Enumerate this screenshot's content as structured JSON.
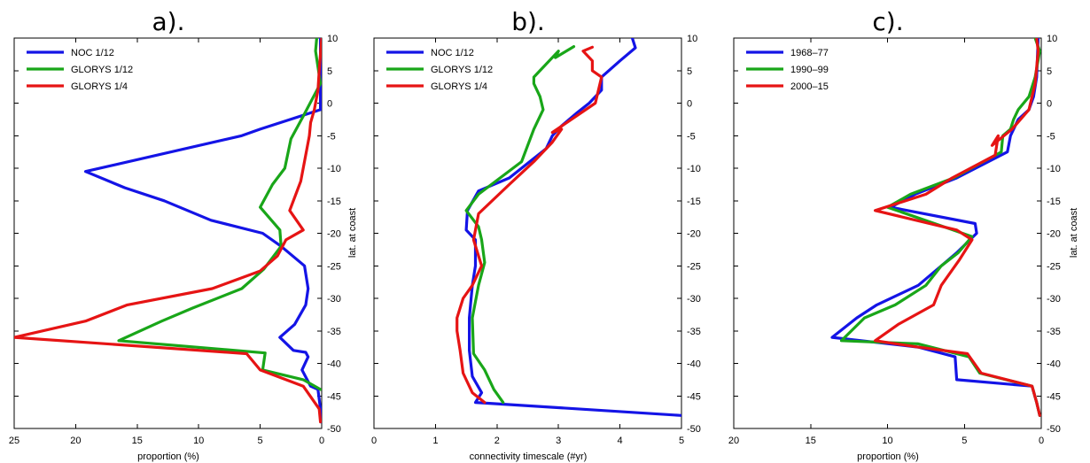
{
  "chart_data": [
    {
      "panel": "a",
      "type": "line",
      "title": "a).",
      "xlabel": "proportion (%)",
      "ylabel": "lat. at coast",
      "xlim": [
        25,
        0
      ],
      "ylim": [
        -50,
        10
      ],
      "x_reversed": true,
      "xticks": [
        25,
        20,
        15,
        10,
        5,
        0
      ],
      "yticks": [
        10,
        5,
        0,
        -5,
        -10,
        -15,
        -20,
        -25,
        -30,
        -35,
        -40,
        -45,
        -50
      ],
      "legend_position": "top-left",
      "series": [
        {
          "name": "NOC 1/12",
          "color": "#1414e6",
          "x": [
            0.05,
            0.1,
            0.3,
            0.9,
            1.6,
            1.1,
            1.3,
            2.3,
            3.4,
            2.2,
            1.3,
            1.1,
            1.4,
            3.3,
            4.8,
            9.0,
            12.8,
            16.0,
            19.2,
            6.5,
            5.0,
            0.1,
            0.1
          ],
          "y": [
            -49,
            -47,
            -44,
            -43.5,
            -41,
            -39,
            -38.3,
            -38,
            -36,
            -34,
            -31,
            -28.5,
            -25,
            -22,
            -20,
            -18,
            -15,
            -13,
            -10.5,
            -5,
            -4,
            -1,
            10
          ]
        },
        {
          "name": "GLORYS 1/12",
          "color": "#19a619",
          "x": [
            0.1,
            0.1,
            1.5,
            4.8,
            4.6,
            4.8,
            16.5,
            13.0,
            10.5,
            6.5,
            4.7,
            3.4,
            2.8,
            2.2,
            1.5,
            0.1,
            0.5,
            0.4
          ],
          "y": [
            -49,
            -44,
            -42.5,
            -41,
            -38.5,
            -38.4,
            -36.5,
            -33.5,
            -31.5,
            -28.5,
            -25.5,
            -23.5,
            -19.5,
            -16,
            -10,
            -1,
            5,
            10
          ],
          "x_full": [
            0.1,
            1.5,
            4.8,
            4.6,
            16.5,
            13.0,
            10.5,
            6.5,
            4.7,
            3.3,
            3.4,
            5.0,
            4.0,
            3.0,
            2.5,
            1.5,
            0.1,
            0.5,
            0.4
          ],
          "y_full": [
            -44,
            -42.5,
            -41,
            -38.4,
            -36.5,
            -33.5,
            -31.5,
            -28.5,
            -25.5,
            -22,
            -19.5,
            -16,
            -12.5,
            -10,
            -5.5,
            -2,
            3,
            8,
            10
          ]
        },
        {
          "name": "GLORYS 1/4",
          "color": "#e61414",
          "x": [
            0.1,
            0.2,
            1.5,
            5.0,
            6.1,
            25.0,
            19.2,
            15.8,
            8.9,
            5.0,
            3.6,
            2.9,
            1.5,
            2.6,
            1.7,
            1.0,
            0.9,
            0.6,
            0.3,
            0.2,
            0.0
          ],
          "y": [
            -49,
            -47,
            -43.5,
            -41,
            -38.5,
            -36,
            -33.5,
            -31,
            -28.5,
            -25.8,
            -23.5,
            -21,
            -19.5,
            -16.5,
            -12,
            -5,
            -3,
            -1,
            2,
            5,
            10
          ]
        }
      ]
    },
    {
      "panel": "b",
      "type": "line",
      "title": "b).",
      "xlabel": "connectivity timescale (#yr)",
      "ylabel": "",
      "xlim": [
        0,
        5
      ],
      "ylim": [
        -50,
        10
      ],
      "x_reversed": false,
      "xticks": [
        0,
        1,
        2,
        3,
        4,
        5
      ],
      "yticks": [
        10,
        5,
        0,
        -5,
        -10,
        -15,
        -20,
        -25,
        -30,
        -35,
        -40,
        -45,
        -50
      ],
      "legend_position": "top-left",
      "series": [
        {
          "name": "NOC 1/12",
          "color": "#1414e6",
          "x": [
            5.0,
            1.65,
            1.75,
            1.6,
            1.55,
            1.55,
            1.6,
            1.65,
            1.65,
            1.5,
            1.52,
            1.7,
            2.2,
            2.8,
            2.9,
            3.05,
            3.3,
            3.5,
            3.7,
            3.7,
            4.0,
            4.25,
            4.2
          ],
          "y": [
            -48,
            -46,
            -44.5,
            -42,
            -38,
            -33,
            -28,
            -25,
            -21,
            -19.5,
            -16.5,
            -13.5,
            -11.5,
            -7,
            -5,
            -3.5,
            -1.5,
            0,
            2,
            4,
            6.5,
            8.5,
            10
          ]
        },
        {
          "name": "GLORYS 1/12",
          "color": "#19a619",
          "x": [
            2.1,
            1.95,
            1.8,
            1.62,
            1.6,
            1.7,
            1.8,
            1.75,
            1.7,
            1.5,
            1.7,
            2.4,
            2.6,
            2.75,
            2.7,
            2.6,
            2.6,
            3.0,
            2.95,
            3.25
          ],
          "y": [
            -46,
            -44,
            -41,
            -38.5,
            -33,
            -28,
            -24.5,
            -21,
            -19,
            -16.5,
            -14,
            -9,
            -4,
            -1,
            1,
            3,
            4,
            8,
            7,
            8.7
          ]
        },
        {
          "name": "GLORYS 1/4",
          "color": "#e61414",
          "x": [
            1.8,
            1.6,
            1.45,
            1.4,
            1.35,
            1.35,
            1.45,
            1.6,
            1.75,
            1.62,
            1.7,
            2.2,
            2.6,
            2.9,
            3.05,
            2.9,
            3.6,
            3.7,
            3.55,
            3.55,
            3.4,
            3.55
          ],
          "y": [
            -46,
            -44.5,
            -41.5,
            -38,
            -35,
            -33,
            -30,
            -28,
            -25,
            -21,
            -17,
            -12.5,
            -9,
            -6,
            -4,
            -4.5,
            0,
            4,
            5,
            6.5,
            8,
            8.6
          ]
        }
      ]
    },
    {
      "panel": "c",
      "type": "line",
      "title": "c).",
      "xlabel": "proportion (%)",
      "ylabel": "lat. at coast",
      "xlim": [
        20,
        0
      ],
      "ylim": [
        -50,
        10
      ],
      "x_reversed": true,
      "xticks": [
        20,
        15,
        10,
        5,
        0
      ],
      "yticks": [
        10,
        5,
        0,
        -5,
        -10,
        -15,
        -20,
        -25,
        -30,
        -35,
        -40,
        -45,
        -50
      ],
      "legend_position": "top-left",
      "series": [
        {
          "name": "1968–77",
          "color": "#1414e6",
          "x": [
            0.1,
            0.3,
            0.6,
            5.5,
            5.6,
            8.0,
            13.6,
            12.0,
            10.7,
            8.0,
            6.5,
            5.5,
            4.2,
            4.3,
            9.8,
            8.2,
            5.5,
            2.2,
            2.0,
            1.8,
            1.5,
            0.8,
            0.5,
            0.3,
            0.2
          ],
          "y": [
            -48,
            -46,
            -43.5,
            -42.5,
            -39,
            -37.5,
            -36,
            -33,
            -31,
            -28,
            -25,
            -23,
            -20,
            -18.5,
            -16,
            -14,
            -11.5,
            -7.5,
            -5,
            -4,
            -2.5,
            -1,
            1,
            4,
            10
          ]
        },
        {
          "name": "1990–99",
          "color": "#19a619",
          "x": [
            0.1,
            0.3,
            0.6,
            4.0,
            4.7,
            8.0,
            13.0,
            11.5,
            9.5,
            7.5,
            6.5,
            5.4,
            4.5,
            10.0,
            8.5,
            5.7,
            2.6,
            2.5,
            2.0,
            1.8,
            1.5,
            0.8,
            0.4,
            0.1,
            0.4
          ],
          "y": [
            -48,
            -46,
            -43.5,
            -41.5,
            -39,
            -37,
            -36.5,
            -33,
            -31,
            -28,
            -25,
            -23,
            -20.5,
            -16,
            -14,
            -11.5,
            -7.5,
            -5,
            -4,
            -2.5,
            -1,
            1,
            4,
            8,
            10
          ]
        },
        {
          "name": "2000–15",
          "color": "#e61414",
          "x": [
            0.1,
            0.3,
            0.6,
            3.9,
            4.8,
            8.0,
            10.8,
            9.3,
            7.0,
            6.5,
            5.3,
            4.5,
            5.5,
            10.8,
            7.5,
            5.8,
            3.0,
            2.8,
            3.2,
            1.9,
            0.8,
            0.4,
            0.2,
            0.3
          ],
          "y": [
            -48,
            -46,
            -43.5,
            -41.5,
            -38.5,
            -37.5,
            -36.5,
            -34,
            -31,
            -28,
            -24,
            -21,
            -19.5,
            -16.5,
            -14,
            -11.5,
            -8,
            -5,
            -6.5,
            -4,
            -1,
            3,
            8,
            10
          ]
        }
      ]
    }
  ]
}
